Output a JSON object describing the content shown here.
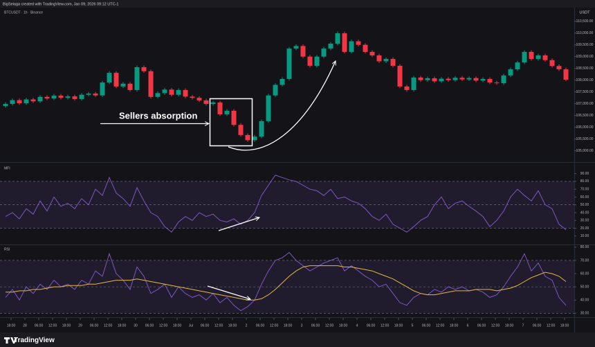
{
  "header": "BigSelaga created with TradingView.com, Jan 09, 2026 09:12 UTC-1",
  "footer_logo": "TradingView",
  "chart_data": [
    {
      "type": "candlestick",
      "title": "BTCUSDT · 1h · Binance",
      "currency": "USDT",
      "annotations": [
        "Sellers absorption"
      ],
      "up_color": "#089981",
      "down_color": "#f23645",
      "xlim": [
        -0.8,
        82.2
      ],
      "ylim": [
        104550,
        111050
      ],
      "yticks": [
        {
          "value": 105000,
          "label": "105,000.00"
        },
        {
          "value": 105500,
          "label": "105,500.00"
        },
        {
          "value": 106000,
          "label": "106,000.00"
        },
        {
          "value": 106500,
          "label": "106,500.00"
        },
        {
          "value": 107000,
          "label": "107,000.00"
        },
        {
          "value": 107500,
          "label": "107,500.00"
        },
        {
          "value": 108000,
          "label": "108,000.00"
        },
        {
          "value": 108500,
          "label": "108,500.00"
        },
        {
          "value": 109000,
          "label": "109,000.00"
        },
        {
          "value": 109500,
          "label": "109,500.00"
        },
        {
          "value": 110000,
          "label": "110,000.00"
        },
        {
          "value": 110500,
          "label": "110,500.00"
        }
      ],
      "open": [
        106900,
        106990,
        107150,
        107020,
        107180,
        107100,
        107290,
        107220,
        107340,
        107250,
        107310,
        107200,
        107380,
        107430,
        107350,
        107900,
        108310,
        107730,
        107850,
        107580,
        108550,
        108380,
        107290,
        107450,
        107600,
        107380,
        107580,
        107300,
        107250,
        107140,
        106990,
        107050,
        106550,
        106700,
        106100,
        105670,
        105450,
        105600,
        106260,
        107350,
        107800,
        108050,
        109340,
        109450,
        109000,
        108610,
        109000,
        109340,
        109550,
        109990,
        109200,
        109650,
        109500,
        109200,
        109050,
        108800,
        108900,
        108610,
        107730,
        107580,
        108110,
        108000,
        108080,
        107950,
        108060,
        108000,
        108100,
        108030,
        108090,
        107980,
        108050,
        107900,
        107870,
        108200,
        108460,
        108750,
        109200,
        108900,
        109050,
        108850,
        108600,
        108460
      ],
      "high": [
        107060,
        107220,
        107220,
        107250,
        107250,
        107360,
        107360,
        107410,
        107410,
        107380,
        107380,
        107450,
        107500,
        107500,
        107970,
        108380,
        108380,
        107920,
        107920,
        108620,
        108620,
        108450,
        107520,
        107670,
        107670,
        107650,
        107650,
        107370,
        107320,
        107210,
        107120,
        107120,
        106770,
        106770,
        106170,
        105740,
        105670,
        106330,
        107420,
        107870,
        108120,
        109410,
        109520,
        109520,
        109070,
        109070,
        109410,
        109620,
        110060,
        110060,
        109720,
        109720,
        109570,
        109270,
        109120,
        108970,
        108970,
        108680,
        107800,
        108180,
        108180,
        108150,
        108150,
        108130,
        108130,
        108170,
        108170,
        108160,
        108160,
        108120,
        108120,
        107970,
        108270,
        108530,
        108820,
        109270,
        109270,
        109120,
        109120,
        108920,
        108670,
        108530
      ],
      "low": [
        106830,
        106920,
        106950,
        106950,
        107030,
        107030,
        107150,
        107150,
        107180,
        107180,
        107130,
        107130,
        107310,
        107280,
        107280,
        107830,
        107660,
        107660,
        107510,
        107510,
        108310,
        107220,
        107220,
        107380,
        107310,
        107310,
        107230,
        107180,
        107070,
        106920,
        106920,
        106480,
        106480,
        106030,
        105600,
        105380,
        105380,
        105530,
        106190,
        107280,
        107730,
        107980,
        109270,
        108930,
        108540,
        108540,
        108930,
        109270,
        109480,
        109130,
        109130,
        109430,
        109130,
        108980,
        108730,
        108730,
        108540,
        107660,
        107510,
        107510,
        107930,
        107930,
        107880,
        107880,
        107930,
        107930,
        107960,
        107960,
        107910,
        107910,
        107830,
        107800,
        107800,
        108130,
        108390,
        108680,
        108830,
        108830,
        108780,
        108530,
        108390,
        107950
      ],
      "close": [
        106990,
        107150,
        107020,
        107180,
        107100,
        107290,
        107220,
        107340,
        107250,
        107310,
        107200,
        107380,
        107430,
        107350,
        107900,
        108310,
        107730,
        107850,
        107580,
        108550,
        108380,
        107290,
        107450,
        107600,
        107380,
        107580,
        107300,
        107250,
        107140,
        106990,
        107050,
        106550,
        106700,
        106100,
        105670,
        105450,
        105600,
        106260,
        107350,
        107800,
        108050,
        109340,
        109450,
        109000,
        108610,
        109000,
        109340,
        109550,
        109990,
        109200,
        109650,
        109500,
        109200,
        109050,
        108800,
        108900,
        108610,
        107730,
        107580,
        108110,
        108000,
        108080,
        107950,
        108060,
        108000,
        108100,
        108030,
        108090,
        107980,
        108050,
        107900,
        107870,
        108200,
        108460,
        108750,
        109200,
        108900,
        109050,
        108850,
        108600,
        108460,
        108020
      ]
    },
    {
      "type": "line",
      "title": "MFI",
      "xlim": [
        -0.8,
        82.2
      ],
      "ylim": [
        0,
        103
      ],
      "yticks": [
        {
          "value": 10,
          "label": "10.00"
        },
        {
          "value": 20,
          "label": "20.00"
        },
        {
          "value": 30,
          "label": "30.00"
        },
        {
          "value": 40,
          "label": "40.00"
        },
        {
          "value": 50,
          "label": "50.00"
        },
        {
          "value": 60,
          "label": "60.00"
        },
        {
          "value": 70,
          "label": "70.00"
        },
        {
          "value": 80,
          "label": "80.00"
        },
        {
          "value": 90,
          "label": "90.00"
        }
      ],
      "bands": [
        80,
        50,
        20
      ],
      "band_color": "#7e57c2",
      "series": [
        {
          "color": "#7e57c2",
          "values": [
            35,
            40,
            32,
            45,
            38,
            55,
            42,
            60,
            48,
            52,
            45,
            58,
            50,
            70,
            62,
            85,
            65,
            58,
            48,
            72,
            55,
            40,
            35,
            22,
            15,
            28,
            35,
            30,
            40,
            35,
            38,
            30,
            28,
            32,
            25,
            30,
            40,
            62,
            75,
            88,
            85,
            82,
            80,
            75,
            70,
            68,
            62,
            70,
            58,
            60,
            55,
            52,
            45,
            35,
            30,
            38,
            25,
            20,
            15,
            22,
            30,
            35,
            50,
            60,
            45,
            52,
            55,
            48,
            42,
            35,
            22,
            30,
            42,
            60,
            70,
            62,
            55,
            68,
            50,
            45,
            25,
            18
          ]
        }
      ]
    },
    {
      "type": "line",
      "title": "RSI",
      "xlim": [
        -0.8,
        82.2
      ],
      "ylim": [
        27,
        81
      ],
      "yticks": [
        {
          "value": 30,
          "label": "30.00"
        },
        {
          "value": 40,
          "label": "40.00"
        },
        {
          "value": 50,
          "label": "50.00"
        },
        {
          "value": 60,
          "label": "60.00"
        },
        {
          "value": 70,
          "label": "70.00"
        },
        {
          "value": 80,
          "label": "80.00"
        }
      ],
      "bands": [
        70,
        50,
        30
      ],
      "band_color": "#7e57c2",
      "xticks": [
        {
          "value": 0.8,
          "label": "18:00"
        },
        {
          "value": 2.8,
          "label": "28"
        },
        {
          "value": 4.8,
          "label": "06:00"
        },
        {
          "value": 6.8,
          "label": "12:00"
        },
        {
          "value": 8.8,
          "label": "18:00"
        },
        {
          "value": 10.8,
          "label": "29"
        },
        {
          "value": 12.8,
          "label": "06:00"
        },
        {
          "value": 14.8,
          "label": "12:00"
        },
        {
          "value": 16.8,
          "label": "18:00"
        },
        {
          "value": 18.8,
          "label": "30"
        },
        {
          "value": 20.8,
          "label": "06:00"
        },
        {
          "value": 22.8,
          "label": "12:00"
        },
        {
          "value": 24.8,
          "label": "18:00"
        },
        {
          "value": 26.8,
          "label": "Jul"
        },
        {
          "value": 28.8,
          "label": "06:00"
        },
        {
          "value": 30.8,
          "label": "12:00"
        },
        {
          "value": 32.8,
          "label": "18:00"
        },
        {
          "value": 34.8,
          "label": "2"
        },
        {
          "value": 36.8,
          "label": "06:00"
        },
        {
          "value": 38.8,
          "label": "12:00"
        },
        {
          "value": 40.8,
          "label": "18:00"
        },
        {
          "value": 42.8,
          "label": "3"
        },
        {
          "value": 44.8,
          "label": "06:00"
        },
        {
          "value": 46.8,
          "label": "12:00"
        },
        {
          "value": 48.8,
          "label": "18:00"
        },
        {
          "value": 50.8,
          "label": "4"
        },
        {
          "value": 52.8,
          "label": "06:00"
        },
        {
          "value": 54.8,
          "label": "12:00"
        },
        {
          "value": 56.8,
          "label": "18:00"
        },
        {
          "value": 58.8,
          "label": "5"
        },
        {
          "value": 60.8,
          "label": "06:00"
        },
        {
          "value": 62.8,
          "label": "12:00"
        },
        {
          "value": 64.8,
          "label": "18:00"
        },
        {
          "value": 66.8,
          "label": "6"
        },
        {
          "value": 68.8,
          "label": "06:00"
        },
        {
          "value": 70.8,
          "label": "12:00"
        },
        {
          "value": 72.8,
          "label": "18:00"
        },
        {
          "value": 74.8,
          "label": "7"
        },
        {
          "value": 76.8,
          "label": "06:00"
        },
        {
          "value": 78.8,
          "label": "12:00"
        },
        {
          "value": 80.8,
          "label": "18:00"
        }
      ],
      "series": [
        {
          "color": "#7e57c2",
          "values": [
            42,
            48,
            40,
            50,
            45,
            52,
            48,
            55,
            50,
            52,
            48,
            55,
            52,
            62,
            58,
            75,
            60,
            55,
            48,
            65,
            58,
            45,
            48,
            52,
            42,
            50,
            45,
            42,
            44,
            40,
            45,
            38,
            42,
            36,
            32,
            35,
            40,
            52,
            62,
            70,
            72,
            76,
            70,
            66,
            62,
            65,
            68,
            70,
            72,
            62,
            66,
            62,
            58,
            55,
            50,
            52,
            45,
            38,
            36,
            42,
            45,
            44,
            48,
            46,
            50,
            48,
            50,
            47,
            48,
            46,
            42,
            44,
            50,
            58,
            65,
            75,
            62,
            68,
            58,
            55,
            42,
            36
          ]
        },
        {
          "color": "#e6b93a",
          "values": [
            46,
            46,
            47,
            47,
            48,
            48,
            49,
            50,
            50,
            51,
            51,
            51,
            52,
            52,
            53,
            54,
            55,
            55,
            55,
            56,
            55,
            54,
            53,
            52,
            51,
            50,
            49,
            48,
            47,
            46,
            45,
            44,
            43,
            42,
            41,
            40,
            40,
            41,
            44,
            48,
            53,
            58,
            62,
            65,
            66,
            66,
            66,
            66,
            66,
            65,
            65,
            64,
            63,
            62,
            60,
            58,
            56,
            53,
            50,
            47,
            45,
            44,
            44,
            45,
            46,
            47,
            47,
            47,
            48,
            48,
            48,
            47,
            48,
            49,
            51,
            54,
            57,
            59,
            61,
            60,
            58,
            54
          ]
        }
      ]
    }
  ]
}
